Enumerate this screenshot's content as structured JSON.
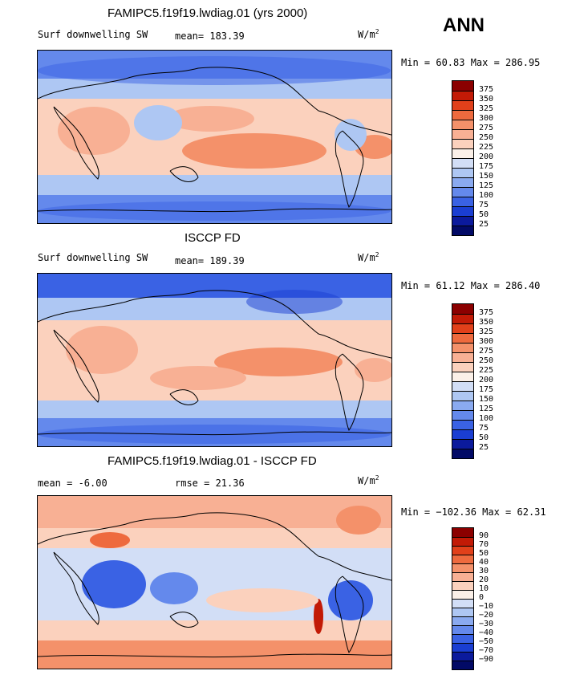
{
  "season": "ANN",
  "units": "W/m",
  "units_exp": "2",
  "panels": [
    {
      "title": "FAMIPC5.f19f19.lwdiag.01 (yrs 2000)",
      "variable": "Surf downwelling SW",
      "stat_label": "mean= 183.39",
      "minmax": "Min =  60.83 Max = 286.95",
      "levels": [
        "375",
        "350",
        "325",
        "300",
        "275",
        "250",
        "225",
        "200",
        "175",
        "150",
        "125",
        "100",
        "75",
        "50",
        "25"
      ],
      "colors": [
        "#8b0000",
        "#c21a06",
        "#e1401a",
        "#ee6a3e",
        "#f4916a",
        "#f8b094",
        "#fbd1bd",
        "#fbf0e8",
        "#d2def6",
        "#aec7f3",
        "#8aaaf0",
        "#6489ec",
        "#3a62e4",
        "#1a3ed2",
        "#0b1a9c",
        "#020a66"
      ]
    },
    {
      "title": "ISCCP FD",
      "variable": "Surf downwelling SW",
      "stat_label": "mean= 189.39",
      "minmax": "Min =  61.12 Max = 286.40",
      "levels": [
        "375",
        "350",
        "325",
        "300",
        "275",
        "250",
        "225",
        "200",
        "175",
        "150",
        "125",
        "100",
        "75",
        "50",
        "25"
      ],
      "colors": [
        "#8b0000",
        "#c21a06",
        "#e1401a",
        "#ee6a3e",
        "#f4916a",
        "#f8b094",
        "#fbd1bd",
        "#fbf0e8",
        "#d2def6",
        "#aec7f3",
        "#8aaaf0",
        "#6489ec",
        "#3a62e4",
        "#1a3ed2",
        "#0b1a9c",
        "#020a66"
      ]
    },
    {
      "title": "FAMIPC5.f19f19.lwdiag.01 - ISCCP FD",
      "variable": "",
      "stat_label": "mean =  -6.00",
      "rmse_label": "rmse =  21.36",
      "minmax": "Min = −102.36 Max =  62.31",
      "levels": [
        "90",
        "70",
        "50",
        "40",
        "30",
        "20",
        "10",
        "0",
        "−10",
        "−20",
        "−30",
        "−40",
        "−50",
        "−70",
        "−90"
      ],
      "colors": [
        "#8b0000",
        "#c21a06",
        "#e1401a",
        "#ee6a3e",
        "#f4916a",
        "#f8b094",
        "#fbd1bd",
        "#fbf0e8",
        "#d2def6",
        "#aec7f3",
        "#8aaaf0",
        "#6489ec",
        "#3a62e4",
        "#1a3ed2",
        "#0b1a9c",
        "#020a66"
      ]
    }
  ]
}
